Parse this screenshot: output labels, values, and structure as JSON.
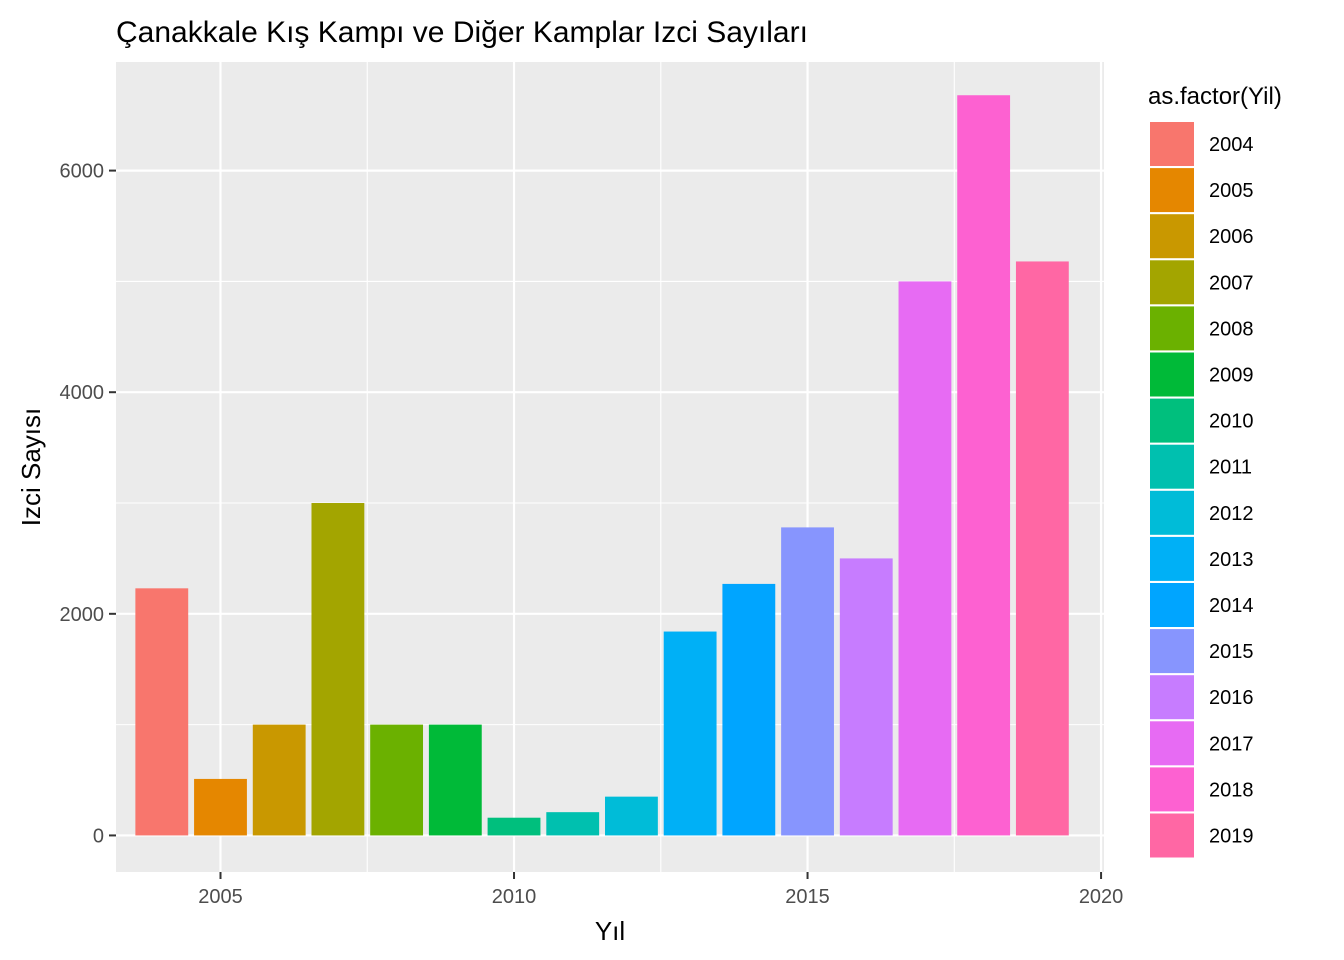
{
  "chart_data": {
    "type": "bar",
    "title": "Çanakkale Kış Kampı ve Diğer Kamplar Izci Sayıları",
    "xlabel": "Yıl",
    "ylabel": "Izci Sayısı",
    "x": [
      2004,
      2005,
      2006,
      2007,
      2008,
      2009,
      2010,
      2011,
      2012,
      2013,
      2014,
      2015,
      2016,
      2017,
      2018,
      2019
    ],
    "values": [
      2230,
      510,
      1000,
      3000,
      1000,
      1000,
      160,
      210,
      350,
      1840,
      2270,
      2780,
      2500,
      5000,
      6680,
      5180
    ],
    "colors": [
      "#F8766D",
      "#E58700",
      "#C99800",
      "#A3A500",
      "#6BB100",
      "#00BA38",
      "#00BF7D",
      "#00C0AF",
      "#00BCD8",
      "#00B0F6",
      "#00A5FF",
      "#8795FE",
      "#C77CFF",
      "#E76BF3",
      "#FD61D1",
      "#FF67A4"
    ],
    "xlim": [
      2003.22,
      2020.05
    ],
    "ylim": [
      -330,
      6980
    ],
    "xticks": [
      2005,
      2010,
      2015,
      2020
    ],
    "yticks": [
      0,
      2000,
      4000,
      6000
    ],
    "grid": true,
    "legend": {
      "title": "as.factor(Yil)",
      "placement": "right",
      "labels": [
        "2004",
        "2005",
        "2006",
        "2007",
        "2008",
        "2009",
        "2010",
        "2011",
        "2012",
        "2013",
        "2014",
        "2015",
        "2016",
        "2017",
        "2018",
        "2019"
      ]
    },
    "panel_background": "#EBEBEB",
    "grid_color": "#FFFFFF"
  }
}
